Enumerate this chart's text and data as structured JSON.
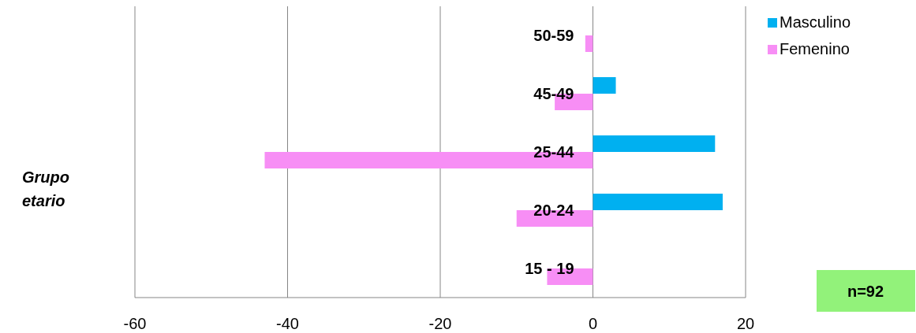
{
  "chart_data": {
    "type": "bar",
    "orientation": "horizontal",
    "ylabel": "Grupo etario",
    "categories": [
      "50-59",
      "45-49",
      "25-44",
      "20-24",
      "15 - 19"
    ],
    "series": [
      {
        "name": "Masculino",
        "color": "#00b0f0",
        "values": [
          null,
          3,
          16,
          17,
          null
        ]
      },
      {
        "name": "Femenino",
        "color": "#f78ef5",
        "values": [
          -1,
          -5,
          -43,
          -10,
          -6
        ]
      }
    ],
    "xlim": [
      -60,
      20
    ],
    "xticks": [
      -60,
      -40,
      -20,
      0,
      20
    ],
    "grid": "x",
    "legend": "top right",
    "annotations": [
      "n=92"
    ]
  }
}
